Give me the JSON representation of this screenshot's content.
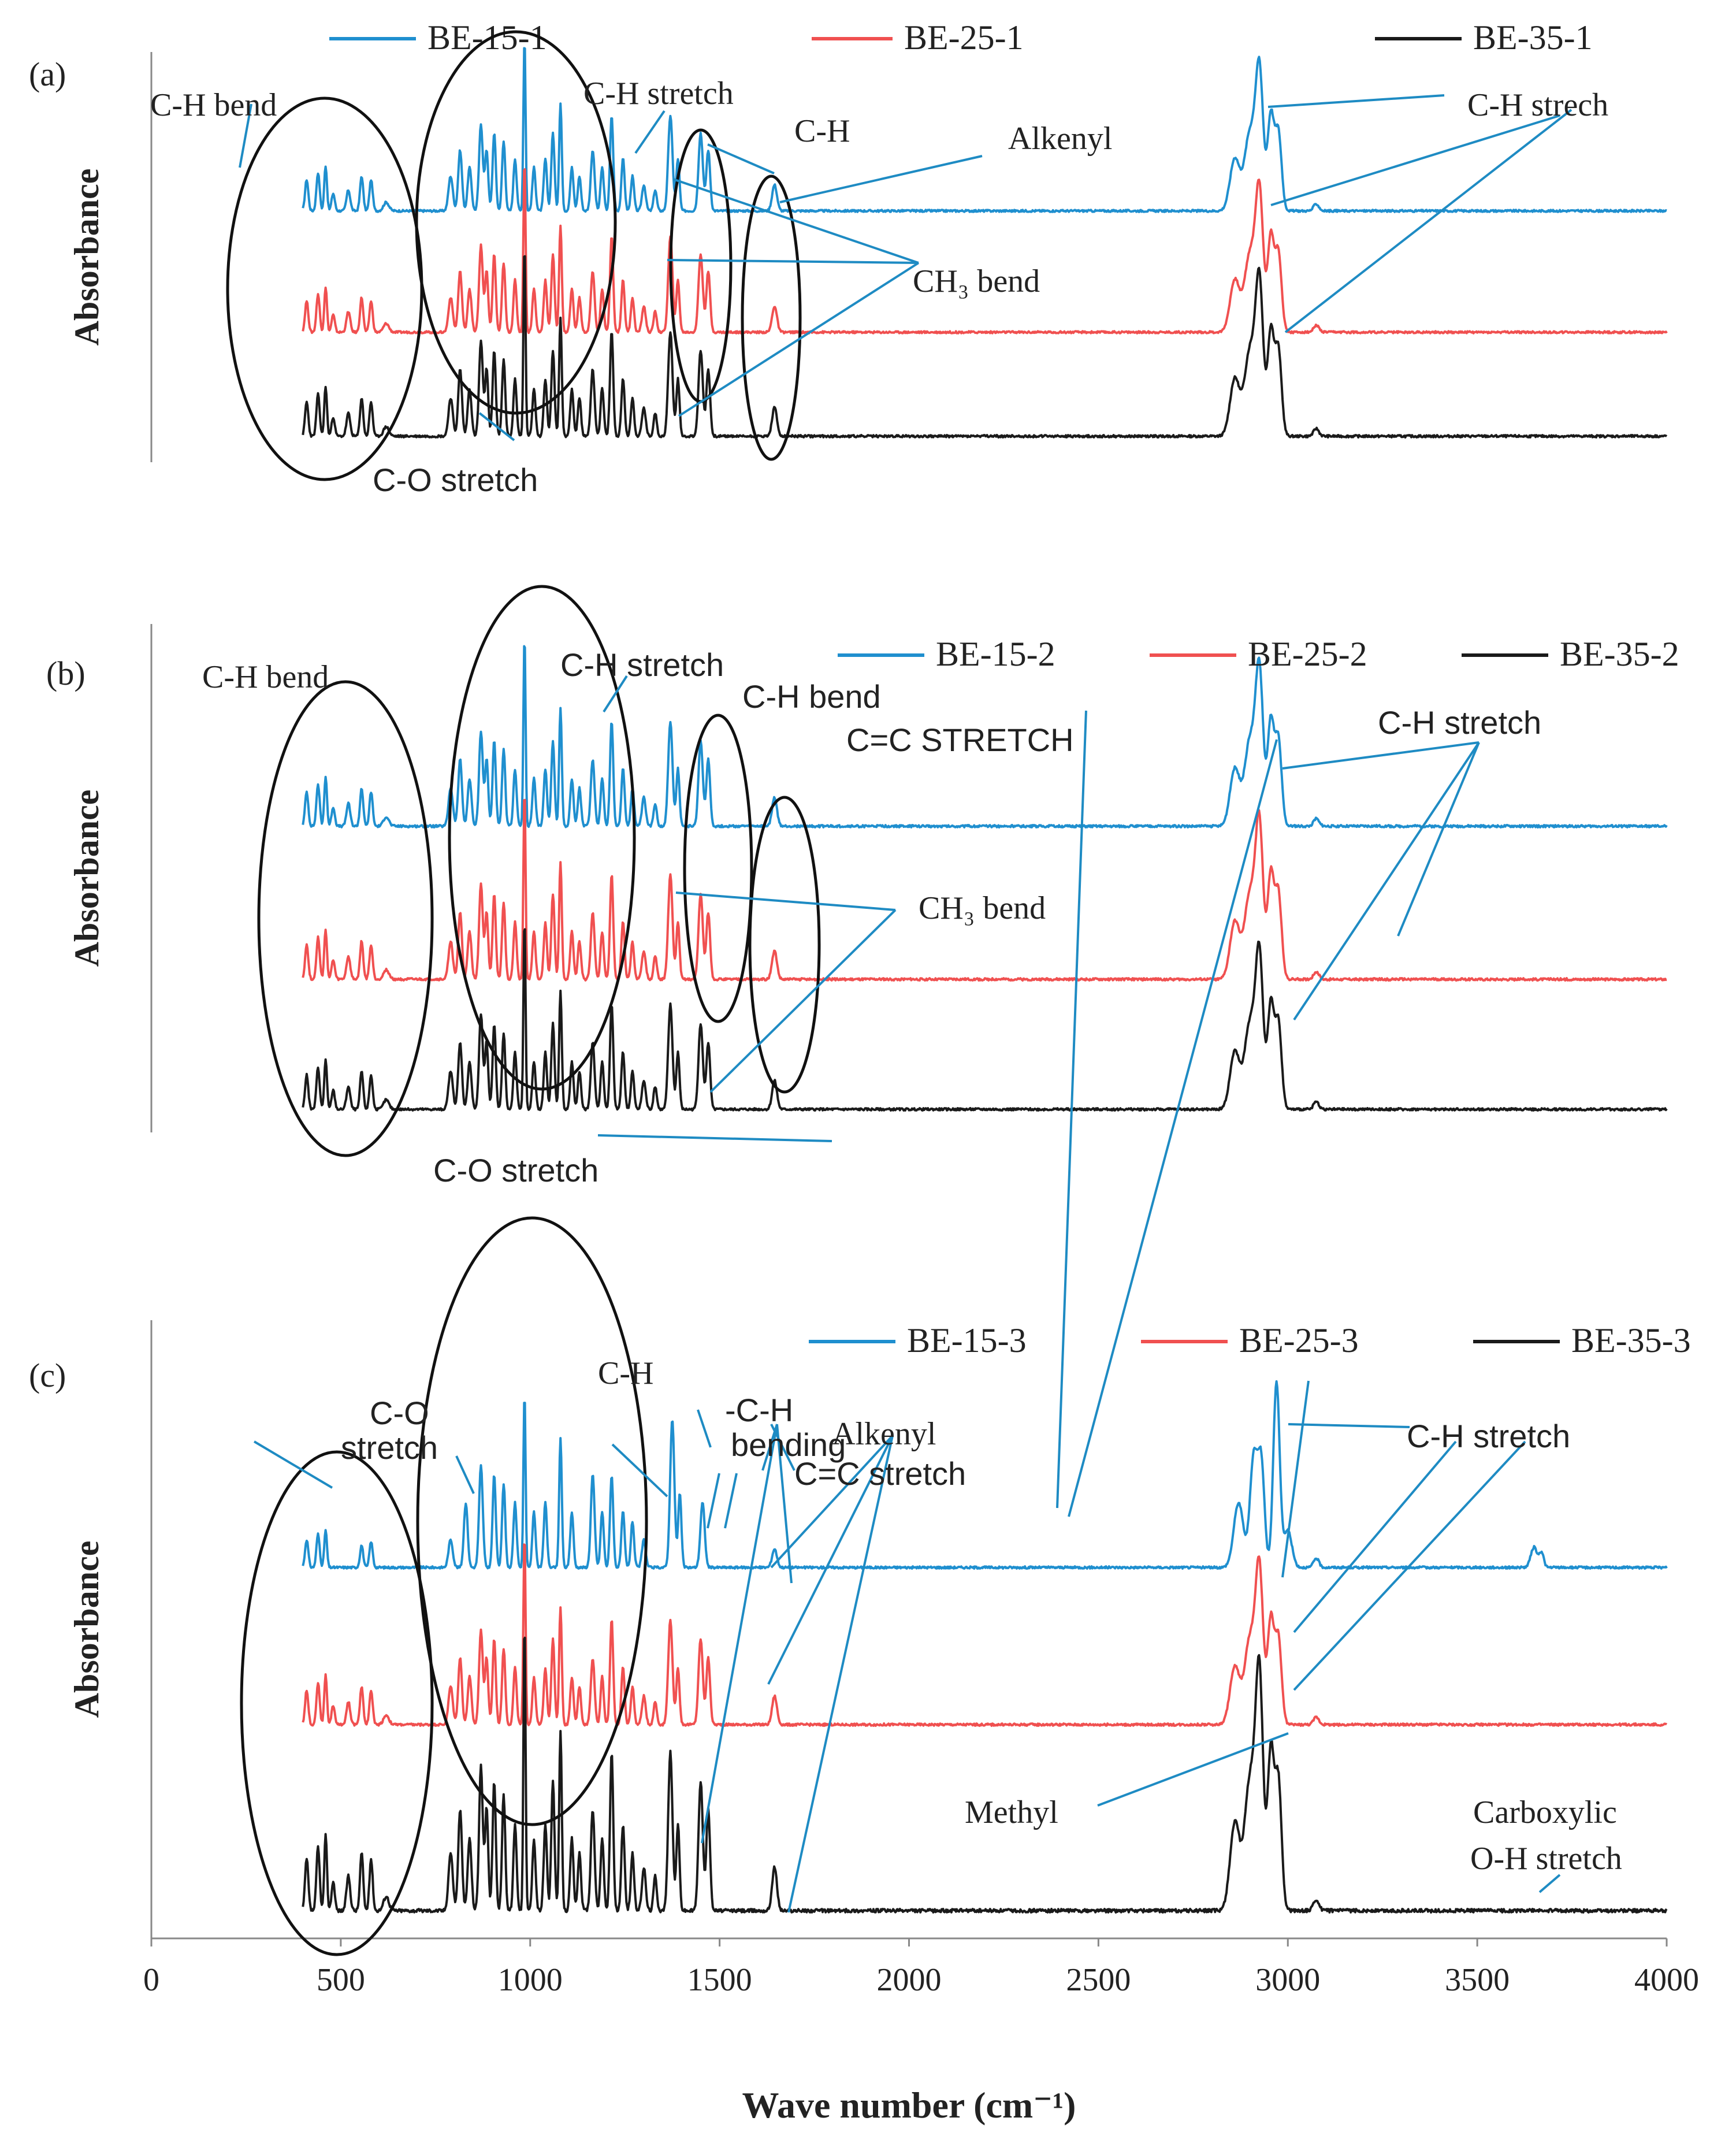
{
  "chart_data": [
    {
      "panel_label": "(a)",
      "type": "line",
      "ylabel": "Absorbance",
      "xlim": [
        0,
        4000
      ],
      "series": [
        {
          "name": "BE-15-1",
          "color": "#1f8fcf"
        },
        {
          "name": "BE-25-1",
          "color": "#f05050"
        },
        {
          "name": "BE-35-1",
          "color": "#1a1a1a"
        }
      ],
      "annotations": [
        {
          "text": "C-H bend"
        },
        {
          "text": "C-H stretch"
        },
        {
          "text": "C-H"
        },
        {
          "text": "Alkenyl"
        },
        {
          "text": "C-H strech"
        },
        {
          "text": "CH₃ bend"
        },
        {
          "text": "C-O stretch"
        }
      ]
    },
    {
      "panel_label": "(b)",
      "type": "line",
      "ylabel": "Absorbance",
      "xlim": [
        0,
        4000
      ],
      "series": [
        {
          "name": "BE-15-2",
          "color": "#1f8fcf"
        },
        {
          "name": "BE-25-2",
          "color": "#f05050"
        },
        {
          "name": "BE-35-2",
          "color": "#1a1a1a"
        }
      ],
      "annotations": [
        {
          "text": "C-H bend"
        },
        {
          "text": "C-H stretch"
        },
        {
          "text": "C-H bend"
        },
        {
          "text": "C=C STRETCH"
        },
        {
          "text": "C-H stretch"
        },
        {
          "text": "CH₃ bend"
        },
        {
          "text": "C-O stretch"
        }
      ]
    },
    {
      "panel_label": "(c)",
      "type": "line",
      "ylabel": "Absorbance",
      "xlabel": "Wave number (cm⁻¹)",
      "xlim": [
        0,
        4000
      ],
      "xticks": [
        0,
        500,
        1000,
        1500,
        2000,
        2500,
        3000,
        3500,
        4000
      ],
      "series": [
        {
          "name": "BE-15-3",
          "color": "#1f8fcf"
        },
        {
          "name": "BE-25-3",
          "color": "#f05050"
        },
        {
          "name": "BE-35-3",
          "color": "#1a1a1a"
        }
      ],
      "annotations": [
        {
          "text": "C-O"
        },
        {
          "text": "stretch"
        },
        {
          "text": "C-H"
        },
        {
          "text": "-C-H"
        },
        {
          "text": "bending"
        },
        {
          "text": "Alkenyl"
        },
        {
          "text": "C=C stretch"
        },
        {
          "text": "C-H stretch"
        },
        {
          "text": "Methyl"
        },
        {
          "text": "Carboxylic"
        },
        {
          "text": "O-H stretch"
        }
      ]
    }
  ]
}
